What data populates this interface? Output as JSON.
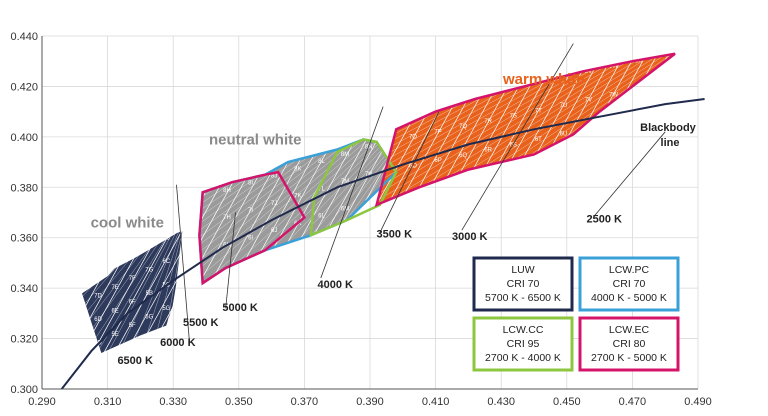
{
  "chart_data": {
    "type": "scatter",
    "title": "",
    "xlabel": "",
    "ylabel": "",
    "xlim": [
      0.29,
      0.49
    ],
    "ylim": [
      0.3,
      0.44
    ],
    "x_ticks": [
      "0.290",
      "0.310",
      "0.330",
      "0.350",
      "0.370",
      "0.390",
      "0.410",
      "0.430",
      "0.450",
      "0.470",
      "0.490"
    ],
    "y_ticks": [
      "0.300",
      "0.320",
      "0.340",
      "0.360",
      "0.380",
      "0.400",
      "0.420",
      "0.440"
    ],
    "grid": true,
    "blackbody_line": {
      "label_line1": "Blackbody",
      "label_line2": "line",
      "points": [
        [
          0.296,
          0.3
        ],
        [
          0.305,
          0.315
        ],
        [
          0.316,
          0.33
        ],
        [
          0.33,
          0.343
        ],
        [
          0.345,
          0.356
        ],
        [
          0.36,
          0.367
        ],
        [
          0.38,
          0.38
        ],
        [
          0.4,
          0.389
        ],
        [
          0.42,
          0.397
        ],
        [
          0.44,
          0.403
        ],
        [
          0.46,
          0.408
        ],
        [
          0.48,
          0.413
        ],
        [
          0.492,
          0.415
        ]
      ]
    },
    "cct_labels": [
      {
        "text": "6500 K",
        "x": 0.313,
        "y": 0.31
      },
      {
        "text": "6000 K",
        "x": 0.326,
        "y": 0.317
      },
      {
        "text": "5500 K",
        "x": 0.333,
        "y": 0.325
      },
      {
        "text": "5000 K",
        "x": 0.345,
        "y": 0.331
      },
      {
        "text": "4000 K",
        "x": 0.374,
        "y": 0.34
      },
      {
        "text": "3500 K",
        "x": 0.392,
        "y": 0.36
      },
      {
        "text": "3000 K",
        "x": 0.415,
        "y": 0.359
      },
      {
        "text": "2500 K",
        "x": 0.456,
        "y": 0.366
      }
    ],
    "regions": [
      {
        "name": "cool white",
        "color": "#2e3a5c",
        "label_color": "#8a8a8a",
        "label_at": [
          0.316,
          0.364
        ],
        "polygon": [
          [
            0.302,
            0.338
          ],
          [
            0.31,
            0.345
          ],
          [
            0.312,
            0.348
          ],
          [
            0.318,
            0.352
          ],
          [
            0.322,
            0.355
          ],
          [
            0.331,
            0.362
          ],
          [
            0.333,
            0.363
          ],
          [
            0.331,
            0.341
          ],
          [
            0.33,
            0.333
          ],
          [
            0.328,
            0.325
          ],
          [
            0.32,
            0.321
          ],
          [
            0.308,
            0.314
          ]
        ],
        "bins": [
          "8D",
          "8E",
          "8F",
          "8G",
          "7C",
          "7D",
          "7E",
          "7F",
          "7G",
          "6C",
          "6D",
          "6E",
          "6F",
          "5B",
          "5C",
          "5D",
          "5E",
          "5F",
          "6G",
          "5G"
        ]
      },
      {
        "name": "neutral white",
        "color": "#9b9b9b",
        "label_color": "#8a8a8a",
        "label_at": [
          0.355,
          0.397
        ],
        "polygon": [
          [
            0.338,
            0.361
          ],
          [
            0.339,
            0.378
          ],
          [
            0.348,
            0.382
          ],
          [
            0.358,
            0.385
          ],
          [
            0.365,
            0.39
          ],
          [
            0.38,
            0.395
          ],
          [
            0.388,
            0.399
          ],
          [
            0.392,
            0.398
          ],
          [
            0.398,
            0.386
          ],
          [
            0.383,
            0.367
          ],
          [
            0.372,
            0.361
          ],
          [
            0.358,
            0.355
          ],
          [
            0.346,
            0.348
          ],
          [
            0.339,
            0.342
          ]
        ],
        "bins": [
          "8H",
          "8I",
          "8J",
          "8K",
          "8L",
          "8M",
          "8N",
          "7H",
          "7I",
          "7J",
          "7K",
          "7L",
          "7M",
          "7N",
          "6H",
          "6I",
          "6J",
          "6K",
          "6L",
          "6M",
          "6N",
          "5H",
          "5I",
          "5J",
          "5K",
          "5L",
          "5M",
          "5N"
        ]
      },
      {
        "name": "warm white",
        "color": "#e8621c",
        "label_color": "#e8621c",
        "label_at": [
          0.443,
          0.421
        ],
        "polygon": [
          [
            0.398,
            0.403
          ],
          [
            0.41,
            0.41
          ],
          [
            0.422,
            0.415
          ],
          [
            0.44,
            0.421
          ],
          [
            0.455,
            0.426
          ],
          [
            0.47,
            0.43
          ],
          [
            0.483,
            0.433
          ],
          [
            0.47,
            0.42
          ],
          [
            0.46,
            0.41
          ],
          [
            0.452,
            0.401
          ],
          [
            0.44,
            0.393
          ],
          [
            0.42,
            0.387
          ],
          [
            0.405,
            0.38
          ],
          [
            0.392,
            0.373
          ]
        ],
        "bins": [
          "8O",
          "8P",
          "8Q",
          "8R",
          "8S",
          "8T",
          "8U",
          "8V",
          "8W",
          "8X",
          "7O",
          "7P",
          "7Q",
          "7R",
          "7S",
          "7T",
          "7U",
          "7V",
          "7W",
          "7X",
          "6O",
          "6P",
          "6Q",
          "6R",
          "6S",
          "6T",
          "6U",
          "6V",
          "6W",
          "6X",
          "5O",
          "5P",
          "5Q",
          "5R",
          "5S",
          "5T",
          "5U",
          "5V",
          "5W",
          "5X"
        ]
      }
    ],
    "legend": [
      {
        "title": "LUW",
        "cri": "CRI 70",
        "range": "5700 K - 6500 K",
        "border": "#1f2a4d"
      },
      {
        "title": "LCW.PC",
        "cri": "CRI 70",
        "range": "4000 K - 5000 K",
        "border": "#3aa0d8"
      },
      {
        "title": "LCW.CC",
        "cri": "CRI 95",
        "range": "2700 K - 4000 K",
        "border": "#8dc63f"
      },
      {
        "title": "LCW.EC",
        "cri": "CRI 80",
        "range": "2700 K - 5000 K",
        "border": "#d4146b"
      }
    ]
  }
}
